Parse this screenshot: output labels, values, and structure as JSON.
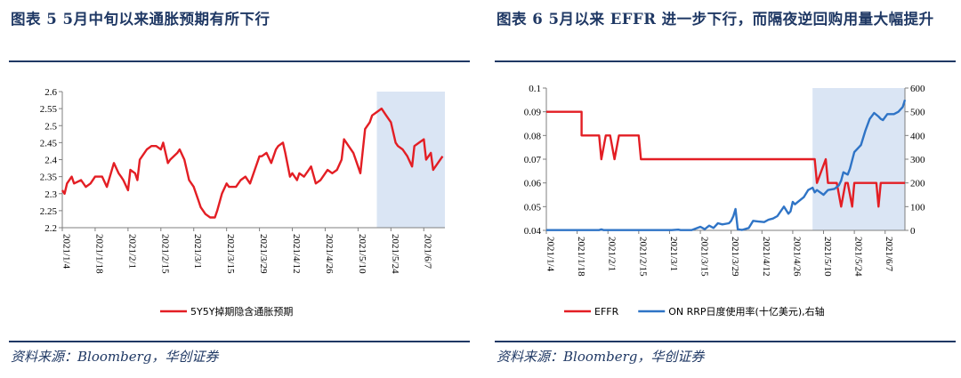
{
  "panels": {
    "left": {
      "title": "图表 5   5月中旬以来通胀预期有所下行",
      "source": "资料来源：Bloomberg，华创证券"
    },
    "right": {
      "title": "图表 6   5月以来 EFFR 进一步下行，而隔夜逆回购用量大幅提升",
      "source": "资料来源：Bloomberg，华创证券"
    }
  },
  "chart_data": [
    {
      "type": "line",
      "title": "",
      "xlabel": "",
      "ylabel": "",
      "ylim": [
        2.2,
        2.6
      ],
      "yticks": [
        "2.6",
        "2.55",
        "2.5",
        "2.45",
        "2.4",
        "2.35",
        "2.3",
        "2.25",
        "2.2"
      ],
      "x_tick_labels": [
        "2021/1/4",
        "2021/1/18",
        "2021/2/1",
        "2021/2/15",
        "2021/3/1",
        "2021/3/15",
        "2021/3/29",
        "2021/4/12",
        "2021/4/26",
        "2021/5/10",
        "2021/5/24",
        "2021/6/7"
      ],
      "shaded_region": {
        "from_day": 134,
        "to_day": 163,
        "color": "#dae5f4"
      },
      "series": [
        {
          "name": "5Y5Y掉期隐含通胀预期",
          "color": "#e31e24",
          "x_day": [
            0,
            1,
            2,
            4,
            5,
            8,
            10,
            12,
            14,
            15,
            17,
            19,
            22,
            24,
            25,
            26,
            28,
            29,
            31,
            32,
            33,
            35,
            36,
            38,
            40,
            42,
            43,
            45,
            46,
            49,
            50,
            52,
            54,
            56,
            58,
            59,
            61,
            63,
            65,
            66,
            68,
            70,
            71,
            73,
            74,
            76,
            78,
            80,
            82,
            84,
            85,
            87,
            89,
            91,
            92,
            94,
            95,
            97,
            98,
            100,
            101,
            103,
            105,
            106,
            108,
            110,
            112,
            113,
            115,
            117,
            119,
            120,
            122,
            124,
            126,
            127,
            129,
            131,
            132,
            134,
            136,
            138,
            140,
            142,
            143,
            145,
            147,
            149,
            150,
            152,
            154,
            155,
            157,
            158,
            160,
            162
          ],
          "values": [
            2.31,
            2.3,
            2.33,
            2.35,
            2.33,
            2.34,
            2.32,
            2.33,
            2.35,
            2.35,
            2.35,
            2.32,
            2.39,
            2.36,
            2.35,
            2.34,
            2.31,
            2.37,
            2.36,
            2.34,
            2.4,
            2.42,
            2.43,
            2.44,
            2.44,
            2.43,
            2.45,
            2.39,
            2.4,
            2.42,
            2.43,
            2.4,
            2.34,
            2.32,
            2.28,
            2.26,
            2.24,
            2.23,
            2.23,
            2.25,
            2.3,
            2.33,
            2.32,
            2.32,
            2.32,
            2.34,
            2.35,
            2.33,
            2.37,
            2.41,
            2.41,
            2.42,
            2.39,
            2.43,
            2.44,
            2.45,
            2.42,
            2.35,
            2.36,
            2.34,
            2.36,
            2.35,
            2.37,
            2.38,
            2.33,
            2.34,
            2.36,
            2.37,
            2.36,
            2.37,
            2.4,
            2.46,
            2.44,
            2.42,
            2.38,
            2.36,
            2.49,
            2.51,
            2.53,
            2.54,
            2.55,
            2.53,
            2.51,
            2.45,
            2.44,
            2.43,
            2.41,
            2.38,
            2.44,
            2.45,
            2.46,
            2.4,
            2.42,
            2.37,
            2.39,
            2.41
          ]
        }
      ]
    },
    {
      "type": "line",
      "title": "",
      "xlabel": "",
      "ylabel": "",
      "ylim": [
        0.04,
        0.1
      ],
      "ylim_right": [
        0,
        600
      ],
      "yticks": [
        "0.1",
        "0.09",
        "0.08",
        "0.07",
        "0.06",
        "0.05",
        "0.04"
      ],
      "yticks_right": [
        "600",
        "500",
        "400",
        "300",
        "200",
        "100",
        "0"
      ],
      "x_tick_labels": [
        "2021/1/4",
        "2021/1/18",
        "2021/2/1",
        "2021/2/15",
        "2021/3/1",
        "2021/3/15",
        "2021/3/29",
        "2021/4/12",
        "2021/4/26",
        "2021/5/10",
        "2021/5/24",
        "2021/6/7"
      ],
      "shaded_region": {
        "from_day": 121,
        "to_day": 163,
        "color": "#dae5f4"
      },
      "series": [
        {
          "name": "EFFR",
          "axis": "left",
          "color": "#e31e24",
          "x_day": [
            0,
            16,
            16,
            24,
            25,
            27,
            29,
            31,
            33,
            35,
            36,
            42,
            43,
            122,
            123,
            127,
            128,
            132,
            134,
            136,
            137,
            139,
            140,
            141,
            150,
            151,
            152,
            153,
            154,
            155,
            163
          ],
          "values": [
            0.09,
            0.09,
            0.08,
            0.08,
            0.07,
            0.08,
            0.08,
            0.07,
            0.08,
            0.08,
            0.08,
            0.08,
            0.07,
            0.07,
            0.06,
            0.07,
            0.06,
            0.06,
            0.05,
            0.06,
            0.06,
            0.05,
            0.06,
            0.06,
            0.06,
            0.05,
            0.06,
            0.06,
            0.06,
            0.06,
            0.06
          ]
        },
        {
          "name": "ON RRP日度使用率(十亿美元),右轴",
          "axis": "right",
          "color": "#2f74c6",
          "x_day": [
            0,
            24,
            25,
            26,
            57,
            60,
            61,
            66,
            70,
            72,
            74,
            76,
            78,
            80,
            83,
            84,
            85,
            86,
            87,
            88,
            89,
            92,
            94,
            96,
            99,
            101,
            103,
            105,
            108,
            110,
            111,
            112,
            113,
            115,
            117,
            119,
            121,
            122,
            123,
            126,
            128,
            131,
            133,
            134,
            135,
            137,
            138,
            140,
            142,
            143,
            145,
            147,
            149,
            151,
            152,
            153,
            155,
            157,
            158,
            160,
            162,
            163
          ],
          "values": [
            1,
            1,
            4,
            1,
            1,
            3,
            1,
            1,
            15,
            5,
            20,
            10,
            30,
            25,
            30,
            40,
            60,
            90,
            5,
            3,
            2,
            10,
            40,
            38,
            35,
            45,
            50,
            60,
            100,
            70,
            80,
            120,
            110,
            125,
            140,
            170,
            180,
            160,
            170,
            150,
            170,
            175,
            190,
            210,
            245,
            235,
            260,
            330,
            350,
            360,
            420,
            470,
            495,
            480,
            470,
            465,
            490,
            490,
            490,
            500,
            520,
            550
          ]
        }
      ]
    }
  ]
}
